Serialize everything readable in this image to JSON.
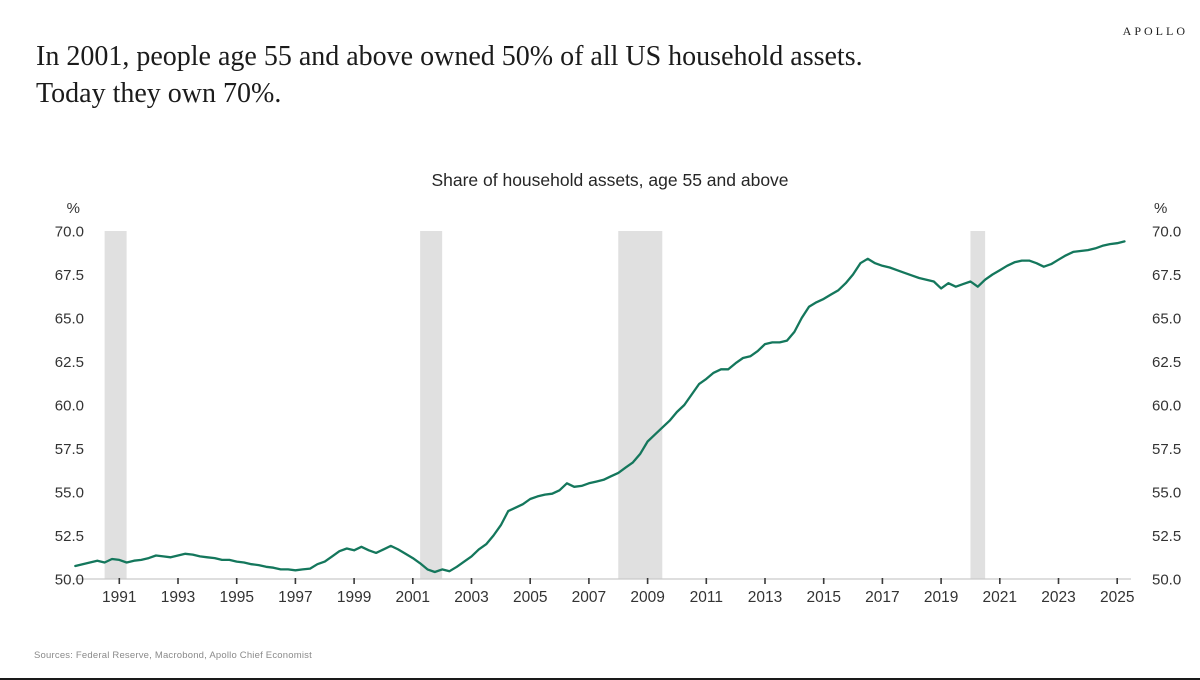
{
  "slide": {
    "logo": "APOLLO",
    "headline_line1": "In 2001, people age 55 and above owned 50% of all US household assets.",
    "headline_line2": "Today they own 70%.",
    "source": "Sources: Federal Reserve, Macrobond, Apollo Chief Economist"
  },
  "chart_data": {
    "type": "line",
    "title": "Share of household assets, age 55 and above",
    "ylabel": "%",
    "unit_label_left": "%",
    "unit_label_right": "%",
    "ylim": [
      50.0,
      70.0
    ],
    "ytick_step": 2.5,
    "yticks": [
      "70.0",
      "67.5",
      "65.0",
      "62.5",
      "60.0",
      "57.5",
      "55.0",
      "52.5",
      "50.0"
    ],
    "xticks": [
      1991,
      1993,
      1995,
      1997,
      1999,
      2001,
      2003,
      2005,
      2007,
      2009,
      2011,
      2013,
      2015,
      2017,
      2019,
      2021,
      2023,
      2025
    ],
    "grid": "off",
    "legend": "none",
    "line_color": "#14775c",
    "axis_line_color": "#c9c9c9",
    "tick_color": "#3a3a3a",
    "label_color": "#333333",
    "recession_band_color": "#e0e0e0",
    "recession_bands": [
      [
        1990.5,
        1991.25
      ],
      [
        2001.25,
        2002.0
      ],
      [
        2008.0,
        2009.5
      ],
      [
        2020.0,
        2020.5
      ]
    ],
    "series": [
      {
        "name": "Share of household assets, age 55 and above",
        "x_start": 1989.5,
        "x_step": 0.25,
        "values": [
          50.75,
          50.85,
          50.95,
          51.05,
          50.95,
          51.15,
          51.1,
          50.95,
          51.05,
          51.1,
          51.2,
          51.35,
          51.3,
          51.25,
          51.35,
          51.45,
          51.4,
          51.3,
          51.25,
          51.2,
          51.1,
          51.1,
          51.0,
          50.95,
          50.85,
          50.8,
          50.7,
          50.65,
          50.55,
          50.55,
          50.5,
          50.55,
          50.6,
          50.85,
          51.0,
          51.3,
          51.6,
          51.75,
          51.65,
          51.85,
          51.65,
          51.5,
          51.7,
          51.9,
          51.7,
          51.45,
          51.2,
          50.9,
          50.55,
          50.4,
          50.55,
          50.45,
          50.7,
          51.0,
          51.3,
          51.7,
          52.0,
          52.5,
          53.1,
          53.9,
          54.1,
          54.3,
          54.6,
          54.75,
          54.85,
          54.9,
          55.1,
          55.5,
          55.3,
          55.35,
          55.5,
          55.6,
          55.7,
          55.9,
          56.1,
          56.4,
          56.7,
          57.2,
          57.9,
          58.3,
          58.7,
          59.1,
          59.6,
          60.0,
          60.6,
          61.2,
          61.5,
          61.85,
          62.05,
          62.05,
          62.4,
          62.7,
          62.8,
          63.1,
          63.5,
          63.6,
          63.6,
          63.7,
          64.2,
          65.0,
          65.65,
          65.9,
          66.1,
          66.35,
          66.6,
          67.0,
          67.5,
          68.15,
          68.4,
          68.15,
          68.0,
          67.9,
          67.75,
          67.6,
          67.45,
          67.3,
          67.2,
          67.1,
          66.7,
          67.0,
          66.8,
          66.95,
          67.1,
          66.8,
          67.2,
          67.5,
          67.75,
          68.0,
          68.2,
          68.3,
          68.3,
          68.15,
          67.95,
          68.1,
          68.35,
          68.6,
          68.8,
          68.85,
          68.9,
          69.0,
          69.15,
          69.25,
          69.3,
          69.4
        ]
      }
    ]
  }
}
